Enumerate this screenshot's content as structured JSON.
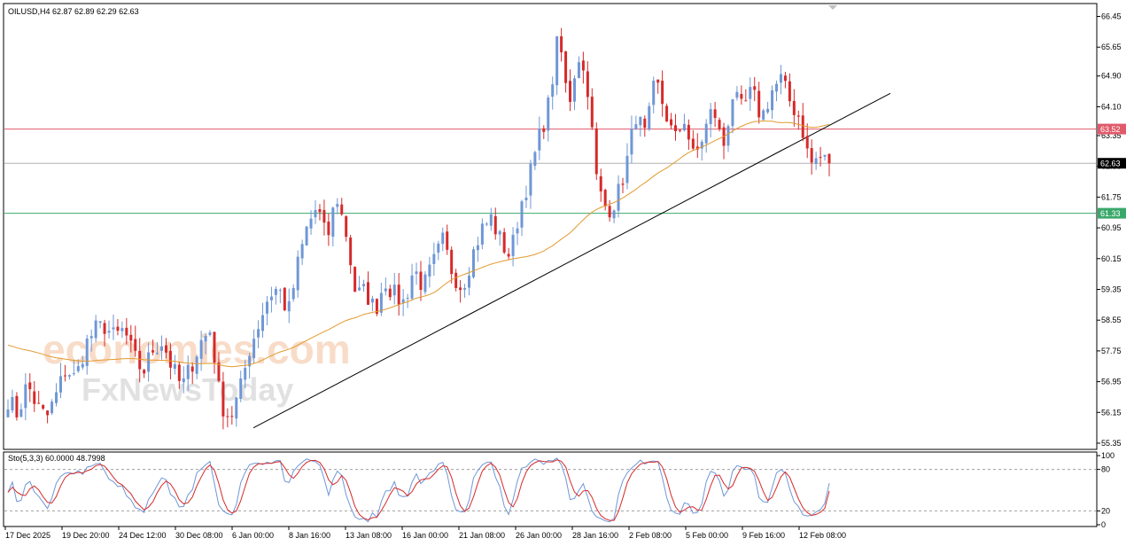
{
  "header": {
    "symbol_line": "OILUSD,H4  62.87 62.89 62.29 62.63"
  },
  "watermark": {
    "line1": "economies.com",
    "line2": "FxNewsToday"
  },
  "colors": {
    "bull": "#6f97d6",
    "bear": "#d62a2a",
    "ma": "#e29a2e",
    "resistance": "#e05a6a",
    "support": "#3aa86b",
    "current": "#b0b0b0",
    "trendline": "#000000",
    "stoch_main": "#6f97d6",
    "stoch_signal": "#d62a2a"
  },
  "chart_data": {
    "type": "candlestick",
    "symbol": "OILUSD",
    "timeframe": "H4",
    "last_ohlc": {
      "open": 62.87,
      "high": 62.89,
      "low": 62.29,
      "close": 62.63
    },
    "ylim": [
      55.35,
      66.6
    ],
    "y_ticks": [
      "66.45",
      "65.65",
      "64.90",
      "64.10",
      "63.35",
      "62.55",
      "61.75",
      "60.95",
      "60.15",
      "59.35",
      "58.55",
      "57.75",
      "56.95",
      "56.15",
      "55.35"
    ],
    "x_ticks": [
      "17 Dec 2025",
      "19 Dec 20:00",
      "24 Dec 12:00",
      "30 Dec 08:00",
      "6 Jan 00:00",
      "8 Jan 16:00",
      "13 Jan 08:00",
      "16 Jan 00:00",
      "21 Jan 08:00",
      "26 Jan 00:00",
      "28 Jan 16:00",
      "2 Feb 08:00",
      "5 Feb 00:00",
      "9 Feb 16:00",
      "12 Feb 08:00"
    ],
    "levels": [
      {
        "name": "resistance",
        "value": 63.52,
        "label": "63.52"
      },
      {
        "name": "current",
        "value": 62.63,
        "label": "62.63"
      },
      {
        "name": "support",
        "value": 61.33,
        "label": "61.33"
      }
    ],
    "close_path": [
      56.5,
      56.1,
      56.9,
      56.3,
      56.0,
      56.6,
      57.3,
      57.0,
      57.9,
      58.3,
      58.4,
      58.1,
      58.3,
      57.6,
      57.2,
      57.8,
      58.0,
      57.3,
      56.8,
      57.4,
      58.0,
      58.3,
      56.4,
      56.0,
      56.7,
      57.8,
      58.5,
      59.2,
      59.4,
      58.7,
      60.0,
      61.0,
      61.5,
      60.6,
      61.8,
      60.8,
      59.2,
      59.3,
      58.8,
      59.6,
      59.2,
      59.0,
      59.9,
      59.4,
      60.0,
      60.6,
      59.8,
      59.4,
      60.2,
      60.9,
      61.2,
      60.6,
      60.2,
      61.5,
      62.3,
      63.3,
      64.2,
      66.0,
      64.1,
      65.5,
      64.6,
      62.0,
      61.4,
      61.7,
      62.6,
      63.9,
      63.3,
      64.8,
      64.0,
      63.2,
      63.8,
      62.7,
      63.4,
      64.1,
      63.0,
      64.4,
      64.0,
      64.5,
      63.8,
      64.5,
      64.8,
      64.2,
      63.8,
      62.6,
      62.8,
      62.63
    ],
    "ma_period": 50,
    "trendline": {
      "from": {
        "x": "6 Jan 00:00",
        "y": 55.75
      },
      "to": {
        "x": "12 Feb 08:00",
        "y": 64.45
      }
    },
    "stochastic": {
      "label": "Sto(5,3,3) 60.0000 48.7998",
      "params": [
        5,
        3,
        3
      ],
      "main": 60.0,
      "signal": 48.7998,
      "ylim": [
        0,
        100
      ],
      "levels": [
        "100",
        "80",
        "20",
        "0"
      ]
    }
  }
}
